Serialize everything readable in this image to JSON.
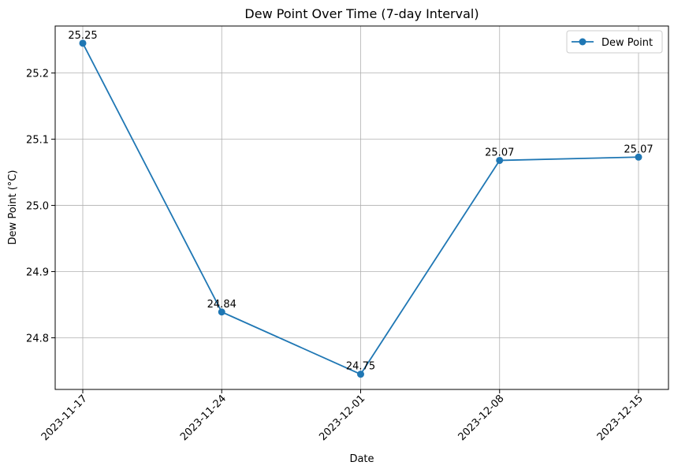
{
  "chart_data": {
    "type": "line",
    "title": "Dew Point Over Time (7-day Interval)",
    "xlabel": "Date",
    "ylabel": "Dew Point (°C)",
    "x": [
      "2023-11-17",
      "2023-11-24",
      "2023-12-01",
      "2023-12-08",
      "2023-12-15"
    ],
    "series": [
      {
        "name": "Dew Point",
        "values": [
          25.245,
          24.839,
          24.745,
          25.068,
          25.073
        ],
        "labels": [
          "25.25",
          "24.84",
          "24.75",
          "25.07",
          "25.07"
        ],
        "color": "#1f77b4",
        "marker": "circle"
      }
    ],
    "yticks": [
      "24.8",
      "24.9",
      "25.0",
      "25.1",
      "25.2"
    ],
    "ylim": [
      24.722,
      25.271
    ],
    "grid": true,
    "legend": "top-right",
    "xtick_rotation": 45
  }
}
